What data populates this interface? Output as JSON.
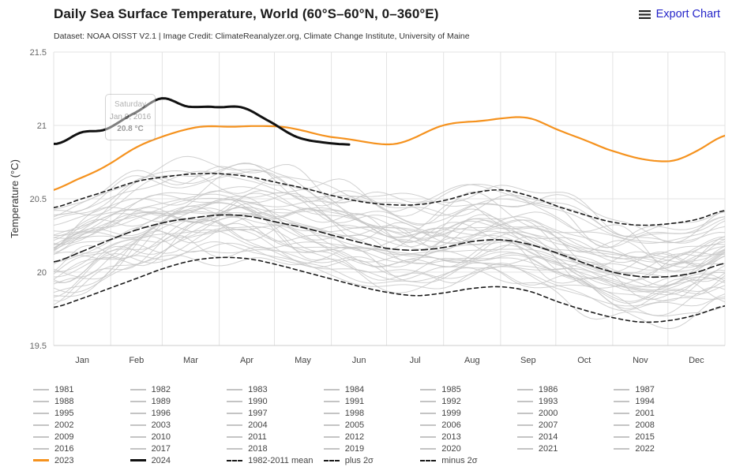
{
  "header": {
    "title": "Daily Sea Surface Temperature, World (60°S–60°N, 0–360°E)",
    "subtitle": "Dataset: NOAA OISST V2.1 | Image Credit: ClimateReanalyzer.org, Climate Change Institute, University of Maine",
    "export_label": "Export Chart"
  },
  "tooltip": {
    "line1": "Saturday",
    "line2": "Jan 9, 2016",
    "line3": "20.8 °C"
  },
  "chart_data": {
    "type": "line",
    "title": "Daily Sea Surface Temperature, World (60°S–60°N, 0–360°E)",
    "ylabel": "Temperature (°C)",
    "ylim": [
      19.5,
      21.5
    ],
    "yticks": [
      19.5,
      20,
      20.5,
      21,
      21.5
    ],
    "xticklabels": [
      "Jan",
      "Feb",
      "Mar",
      "Apr",
      "May",
      "Jun",
      "Jul",
      "Aug",
      "Sep",
      "Oct",
      "Nov",
      "Dec"
    ],
    "resolution": "semi-monthly control points from Jan 1 through Dec 31 (25 values); 2024 runs Jan 1 to ~Jun 8",
    "grid": true,
    "legend_position": "bottom",
    "series": [
      {
        "name": "1982-2011 mean",
        "role": "mean",
        "color": "#1a1a1a",
        "dashed": true,
        "width": 1.6,
        "values": [
          20.07,
          20.14,
          20.22,
          20.29,
          20.34,
          20.37,
          20.39,
          20.38,
          20.34,
          20.3,
          20.25,
          20.2,
          20.16,
          20.15,
          20.17,
          20.21,
          20.22,
          20.19,
          20.13,
          20.06,
          20.0,
          19.97,
          19.97,
          20.0,
          20.06
        ]
      },
      {
        "name": "plus 2σ",
        "role": "plus2sigma",
        "color": "#1a1a1a",
        "dashed": true,
        "width": 1.6,
        "values": [
          20.44,
          20.5,
          20.56,
          20.62,
          20.65,
          20.67,
          20.67,
          20.65,
          20.61,
          20.57,
          20.52,
          20.48,
          20.46,
          20.46,
          20.49,
          20.54,
          20.56,
          20.52,
          20.45,
          20.39,
          20.34,
          20.32,
          20.33,
          20.36,
          20.42
        ]
      },
      {
        "name": "minus 2σ",
        "role": "minus2sigma",
        "color": "#1a1a1a",
        "dashed": true,
        "width": 1.6,
        "values": [
          19.76,
          19.82,
          19.89,
          19.96,
          20.03,
          20.08,
          20.1,
          20.09,
          20.05,
          20.0,
          19.95,
          19.9,
          19.86,
          19.84,
          19.86,
          19.89,
          19.9,
          19.87,
          19.8,
          19.74,
          19.69,
          19.66,
          19.67,
          19.71,
          19.77
        ]
      },
      {
        "name": "2023",
        "role": "y2023",
        "color": "#f5921e",
        "width": 2.2,
        "values": [
          20.55,
          20.64,
          20.74,
          20.85,
          20.93,
          20.98,
          21.01,
          21.03,
          21.0,
          20.95,
          20.89,
          20.86,
          20.88,
          20.93,
          20.99,
          21.04,
          21.07,
          21.06,
          20.98,
          20.9,
          20.81,
          20.75,
          20.76,
          20.84,
          20.92
        ]
      },
      {
        "name": "2024",
        "role": "y2024",
        "color": "#111111",
        "width": 3,
        "end_fraction": 0.44,
        "values": [
          20.9,
          21.01,
          20.99,
          21.07,
          21.16,
          21.08,
          21.1,
          21.13,
          21.04,
          20.94,
          20.9,
          20.88
        ]
      }
    ],
    "background_years": {
      "color": "#c4c4c4",
      "note": "Years 1981–2022 drawn as thin gray lines; anomaly = approximate offset (°C) vs 1982-2011 mean",
      "years": [
        {
          "name": "1981",
          "anomaly": -0.2
        },
        {
          "name": "1982",
          "anomaly": -0.22
        },
        {
          "name": "1983",
          "anomaly": -0.08
        },
        {
          "name": "1984",
          "anomaly": -0.25
        },
        {
          "name": "1985",
          "anomaly": -0.24
        },
        {
          "name": "1986",
          "anomaly": -0.16
        },
        {
          "name": "1987",
          "anomaly": -0.05
        },
        {
          "name": "1988",
          "anomaly": -0.12
        },
        {
          "name": "1989",
          "anomaly": -0.2
        },
        {
          "name": "1990",
          "anomaly": -0.08
        },
        {
          "name": "1991",
          "anomaly": -0.06
        },
        {
          "name": "1992",
          "anomaly": -0.14
        },
        {
          "name": "1993",
          "anomaly": -0.12
        },
        {
          "name": "1994",
          "anomaly": -0.1
        },
        {
          "name": "1995",
          "anomaly": -0.02
        },
        {
          "name": "1996",
          "anomaly": -0.1
        },
        {
          "name": "1997",
          "anomaly": 0.02
        },
        {
          "name": "1998",
          "anomaly": 0.08
        },
        {
          "name": "1999",
          "anomaly": -0.08
        },
        {
          "name": "2000",
          "anomaly": -0.06
        },
        {
          "name": "2001",
          "anomaly": 0.02
        },
        {
          "name": "2002",
          "anomaly": 0.08
        },
        {
          "name": "2003",
          "anomaly": 0.1
        },
        {
          "name": "2004",
          "anomaly": 0.08
        },
        {
          "name": "2005",
          "anomaly": 0.12
        },
        {
          "name": "2006",
          "anomaly": 0.1
        },
        {
          "name": "2007",
          "anomaly": 0.08
        },
        {
          "name": "2008",
          "anomaly": 0.04
        },
        {
          "name": "2009",
          "anomaly": 0.12
        },
        {
          "name": "2010",
          "anomaly": 0.15
        },
        {
          "name": "2011",
          "anomaly": 0.05
        },
        {
          "name": "2012",
          "anomaly": 0.1
        },
        {
          "name": "2013",
          "anomaly": 0.14
        },
        {
          "name": "2014",
          "anomaly": 0.18
        },
        {
          "name": "2015",
          "anomaly": 0.28
        },
        {
          "name": "2016",
          "anomaly": 0.33
        },
        {
          "name": "2017",
          "anomaly": 0.28
        },
        {
          "name": "2018",
          "anomaly": 0.22
        },
        {
          "name": "2019",
          "anomaly": 0.3
        },
        {
          "name": "2020",
          "anomaly": 0.33
        },
        {
          "name": "2021",
          "anomaly": 0.25
        },
        {
          "name": "2022",
          "anomaly": 0.28
        }
      ]
    },
    "colors": {
      "grid": "#e3e3e3",
      "axis_line": "#cccccc",
      "tick_label": "#666666"
    }
  }
}
